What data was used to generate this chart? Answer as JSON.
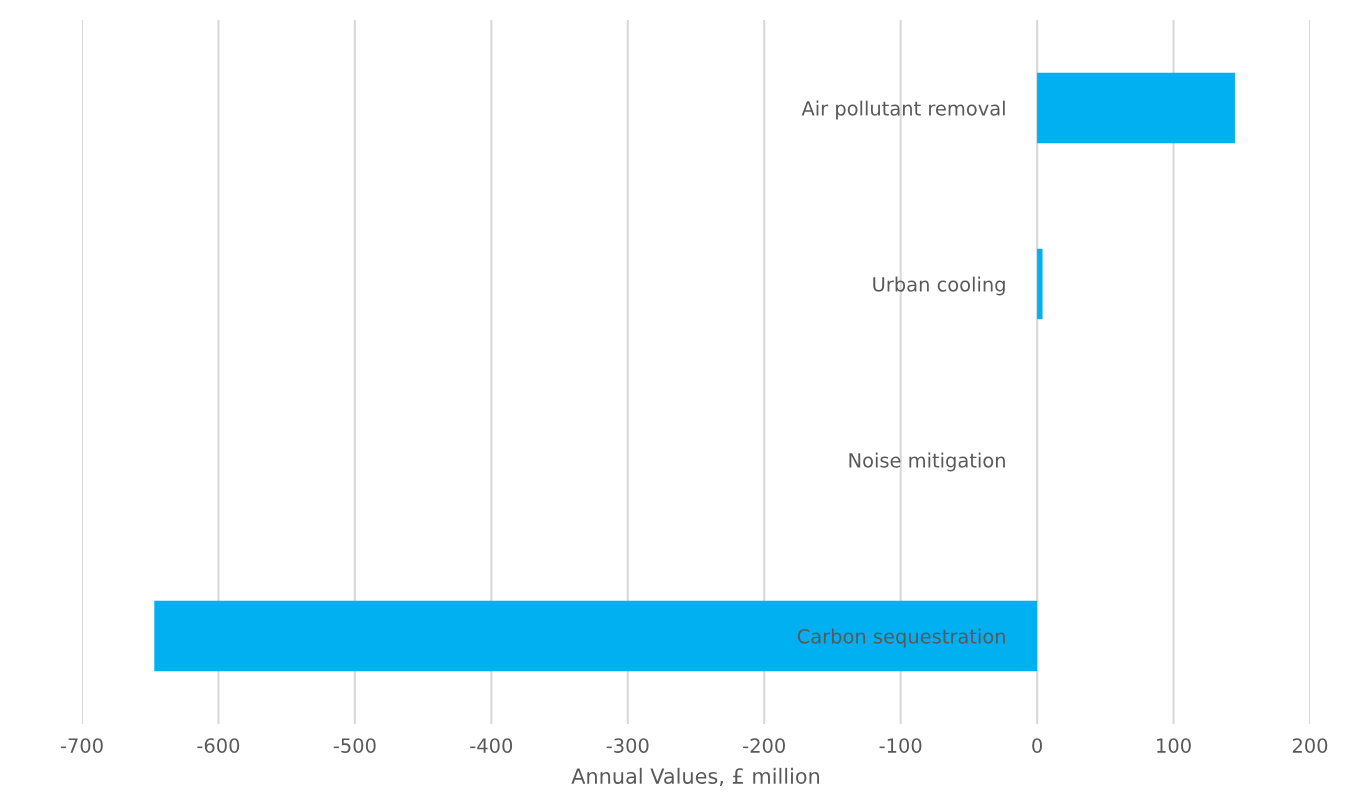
{
  "chart_data": {
    "type": "bar",
    "orientation": "horizontal",
    "xlabel": "Annual Values, £ million",
    "categories": [
      "Air pollutant removal",
      "Urban cooling",
      "Noise mitigation",
      "Carbon sequestration"
    ],
    "values": [
      145,
      4,
      0,
      -647
    ],
    "color": "#00b0f0",
    "xlim": [
      -700,
      200
    ],
    "xticks": [
      {
        "value": -700,
        "label": "-700"
      },
      {
        "value": -600,
        "label": "-600"
      },
      {
        "value": -500,
        "label": "-500"
      },
      {
        "value": -400,
        "label": "-400"
      },
      {
        "value": -300,
        "label": "-300"
      },
      {
        "value": -200,
        "label": "-200"
      },
      {
        "value": -100,
        "label": "-100"
      },
      0,
      100,
      200
    ],
    "grid": "x"
  }
}
